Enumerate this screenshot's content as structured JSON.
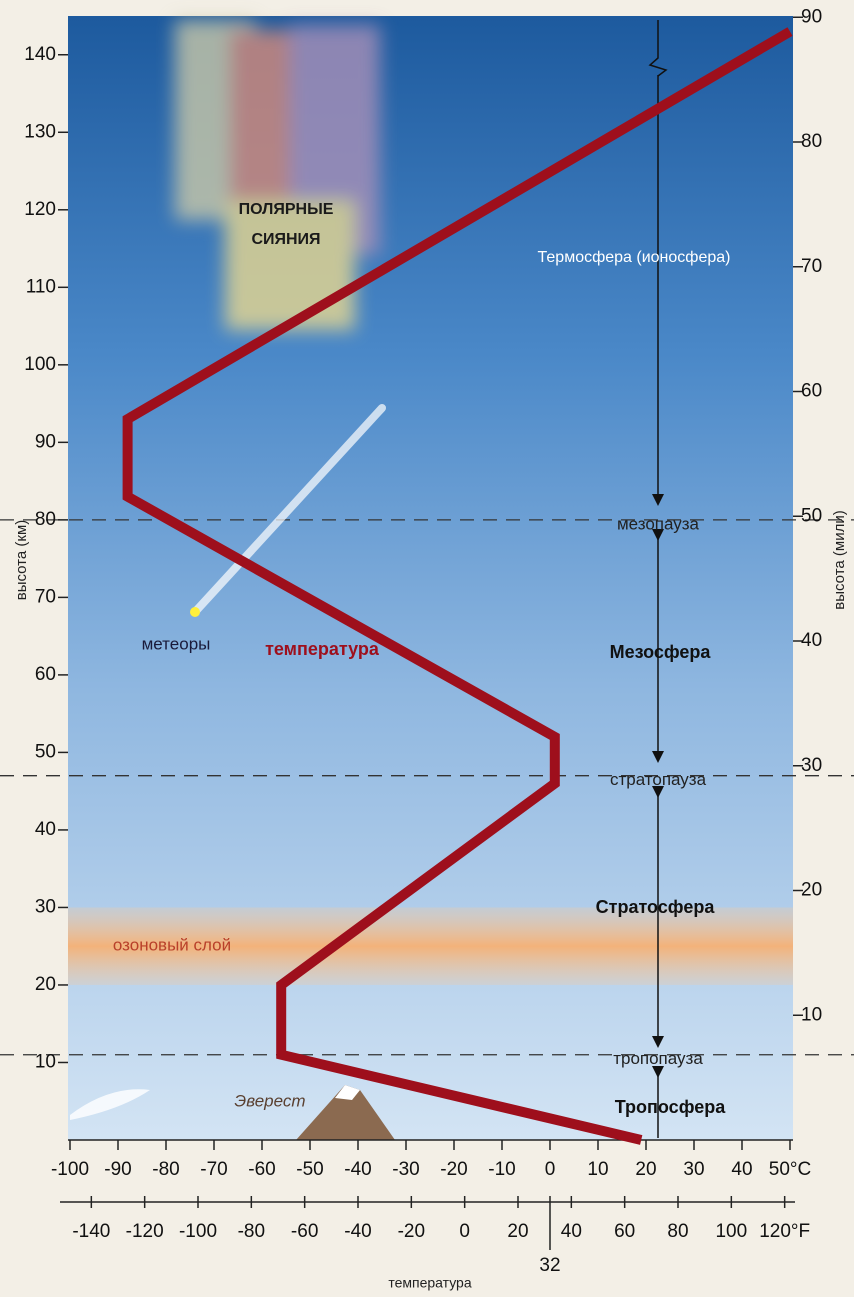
{
  "chart_data": {
    "type": "line",
    "x_label": "температура",
    "y_label": "высота (км)",
    "y2_label": "высота (мили)",
    "xlim": [
      -100,
      50
    ],
    "xticks": [
      -100,
      -90,
      -80,
      -70,
      -60,
      -50,
      -40,
      -30,
      -20,
      -10,
      0,
      10,
      20,
      30,
      40,
      {
        "value": 50,
        "label": "50°C"
      }
    ],
    "x2lim": [
      -148,
      122
    ],
    "x2ticks": [
      -140,
      -120,
      -100,
      -80,
      -60,
      -40,
      -20,
      0,
      20,
      32,
      40,
      60,
      80,
      100,
      {
        "value": 120,
        "label": "120°F"
      }
    ],
    "ylim": [
      0,
      145
    ],
    "yticks": [
      10,
      20,
      30,
      40,
      50,
      60,
      70,
      80,
      90,
      100,
      110,
      120,
      130,
      140
    ],
    "y2lim": [
      0,
      90.1
    ],
    "y2ticks": [
      10,
      20,
      30,
      40,
      50,
      60,
      70,
      80,
      90
    ],
    "series": [
      {
        "name": "температура",
        "color": "#9e0f1c",
        "x": [
          19,
          -56,
          -56,
          1,
          1,
          -88,
          -88,
          50
        ],
        "values": [
          0,
          11,
          20,
          46,
          52,
          83,
          93,
          143
        ]
      }
    ],
    "boundaries": [
      {
        "name": "мезопауза",
        "value": 80
      },
      {
        "name": "стратопауза",
        "value": 47
      },
      {
        "name": "тропопауза",
        "value": 11
      }
    ],
    "ozone_layer": {
      "label": "озоновый слой",
      "range": [
        20,
        30
      ]
    },
    "layers": [
      "Термосфера (ионосфера)",
      "Мезосфера",
      "Стратосфера",
      "Тропосфера"
    ],
    "annotations": {
      "aurora": [
        "ПОЛЯРНЫЕ",
        "СИЯНИЯ"
      ],
      "meteors": "метеоры",
      "everest": "Эверест"
    }
  }
}
